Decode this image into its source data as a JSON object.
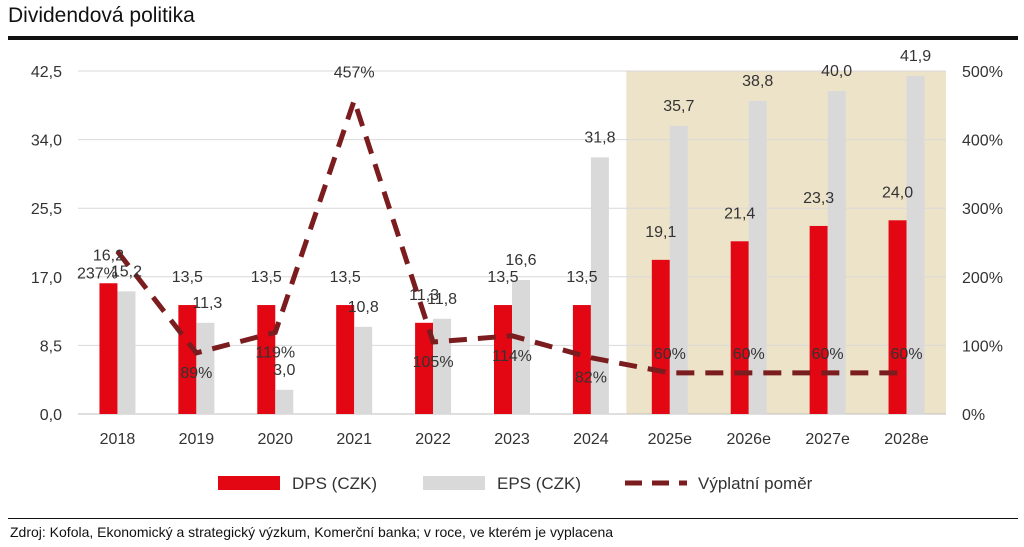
{
  "page": {
    "title": "Dividendová politika",
    "source": "Zdroj: Kofola, Ekonomický a strategický výzkum, Komerční banka; v roce, ve kterém je vyplacena"
  },
  "chart_data": {
    "type": "bar",
    "categories": [
      "2018",
      "2019",
      "2020",
      "2021",
      "2022",
      "2023",
      "2024",
      "2025e",
      "2026e",
      "2027e",
      "2028e"
    ],
    "series": [
      {
        "name": "DPS (CZK)",
        "type": "bar",
        "axis": "left",
        "color": "#e30613",
        "values": [
          16.2,
          13.5,
          13.5,
          13.5,
          11.3,
          13.5,
          13.5,
          19.1,
          21.4,
          23.3,
          24.0
        ],
        "labels": [
          "16,2",
          "13,5",
          "13,5",
          "13,5",
          "11,3",
          "13,5",
          "13,5",
          "19,1",
          "21,4",
          "23,3",
          "24,0"
        ]
      },
      {
        "name": "EPS (CZK)",
        "type": "bar",
        "axis": "left",
        "color": "#d9d9d9",
        "values": [
          15.2,
          11.3,
          3.0,
          10.8,
          11.8,
          16.6,
          31.8,
          35.7,
          38.8,
          40.0,
          41.9
        ],
        "labels": [
          "15,2",
          "11,3",
          "3,0",
          "10,8",
          "11,8",
          "16,6",
          "31,8",
          "35,7",
          "38,8",
          "40,0",
          "41,9"
        ]
      },
      {
        "name": "Výplatní poměr",
        "type": "line",
        "axis": "right",
        "color": "#7b1c1f",
        "values": [
          237,
          89,
          119,
          457,
          105,
          114,
          82,
          60,
          60,
          60,
          60
        ],
        "labels": [
          "237%",
          "89%",
          "119%",
          "457%",
          "105%",
          "114%",
          "82%",
          "60%",
          "60%",
          "60%",
          "60%"
        ]
      }
    ],
    "y_left": {
      "ylim": [
        0,
        42.5
      ],
      "ticks": [
        "0,0",
        "8,5",
        "17,0",
        "25,5",
        "34,0",
        "42,5"
      ]
    },
    "y_right": {
      "ylim": [
        0,
        500
      ],
      "ticks": [
        "0%",
        "100%",
        "200%",
        "300%",
        "400%",
        "500%"
      ]
    },
    "forecast_shading": {
      "from_category": "2025e",
      "color": "#ede3c9"
    },
    "grid": true,
    "legend_position": "bottom"
  }
}
